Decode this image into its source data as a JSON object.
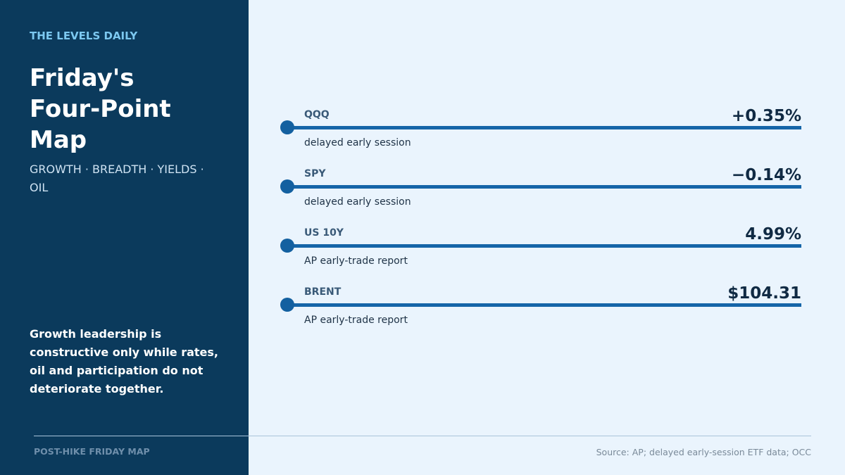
{
  "header": {
    "eyebrow": "THE LEVELS DAILY",
    "title": "Friday's Four-Point Map",
    "subtitle": "GROWTH · BREADTH · YIELDS · OIL"
  },
  "note": "Growth leadership is constructive only while rates, oil and participation do not deteriorate together.",
  "items": [
    {
      "label": "QQQ",
      "value": "+0.35%",
      "detail": "delayed early session"
    },
    {
      "label": "SPY",
      "value": "−0.14%",
      "detail": "delayed early session"
    },
    {
      "label": "US 10Y",
      "value": "4.99%",
      "detail": "AP early-trade report"
    },
    {
      "label": "BRENT",
      "value": "$104.31",
      "detail": "AP early-trade report"
    }
  ],
  "footer": {
    "left": "POST-HIKE FRIDAY MAP",
    "source": "Source: AP; delayed early-session ETF data; OCC"
  }
}
